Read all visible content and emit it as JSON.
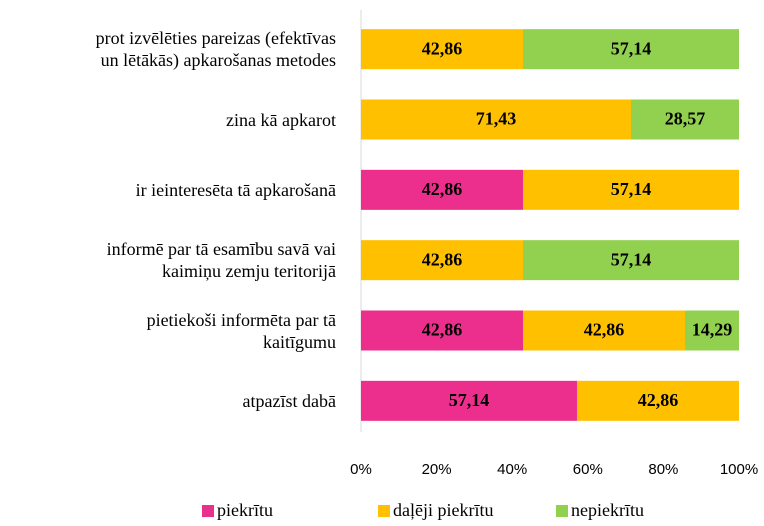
{
  "chart_data": {
    "type": "stacked_bar_horizontal",
    "categories": [
      "prot izvēlēties pareizas (efektīvas\nun lētākās) apkarošanas metodes",
      "zina kā apkarot",
      "ir ieinteresēta tā apkarošanā",
      "informē par tā esamību savā vai\nkaimiņu zemju teritorijā",
      "pietiekoši informēta par tā\nkaitīgumu",
      "atpazīst dabā"
    ],
    "series": [
      {
        "name": "piekrītu",
        "color": "#ec2e8c",
        "values": [
          null,
          null,
          42.86,
          null,
          42.86,
          57.14
        ],
        "value_labels": [
          null,
          null,
          "42,86",
          null,
          "42,86",
          "57,14"
        ]
      },
      {
        "name": "daļēji piekrītu",
        "color": "#ffc000",
        "values": [
          42.86,
          71.43,
          57.14,
          42.86,
          42.86,
          42.86
        ],
        "value_labels": [
          "42,86",
          "71,43",
          "57,14",
          "42,86",
          "42,86",
          "42,86"
        ]
      },
      {
        "name": "nepiekrītu",
        "color": "#92d050",
        "values": [
          57.14,
          28.57,
          null,
          57.14,
          14.29,
          null
        ],
        "value_labels": [
          "57,14",
          "28,57",
          null,
          "57,14",
          "14,29",
          null
        ]
      }
    ],
    "xlim": [
      0,
      100
    ],
    "xticks": [
      {
        "value": 0,
        "label": "0%"
      },
      {
        "value": 20,
        "label": "20%"
      },
      {
        "value": 40,
        "label": "40%"
      },
      {
        "value": 60,
        "label": "60%"
      },
      {
        "value": 80,
        "label": "80%"
      },
      {
        "value": 100,
        "label": "100%"
      }
    ],
    "legend": "bottom"
  }
}
